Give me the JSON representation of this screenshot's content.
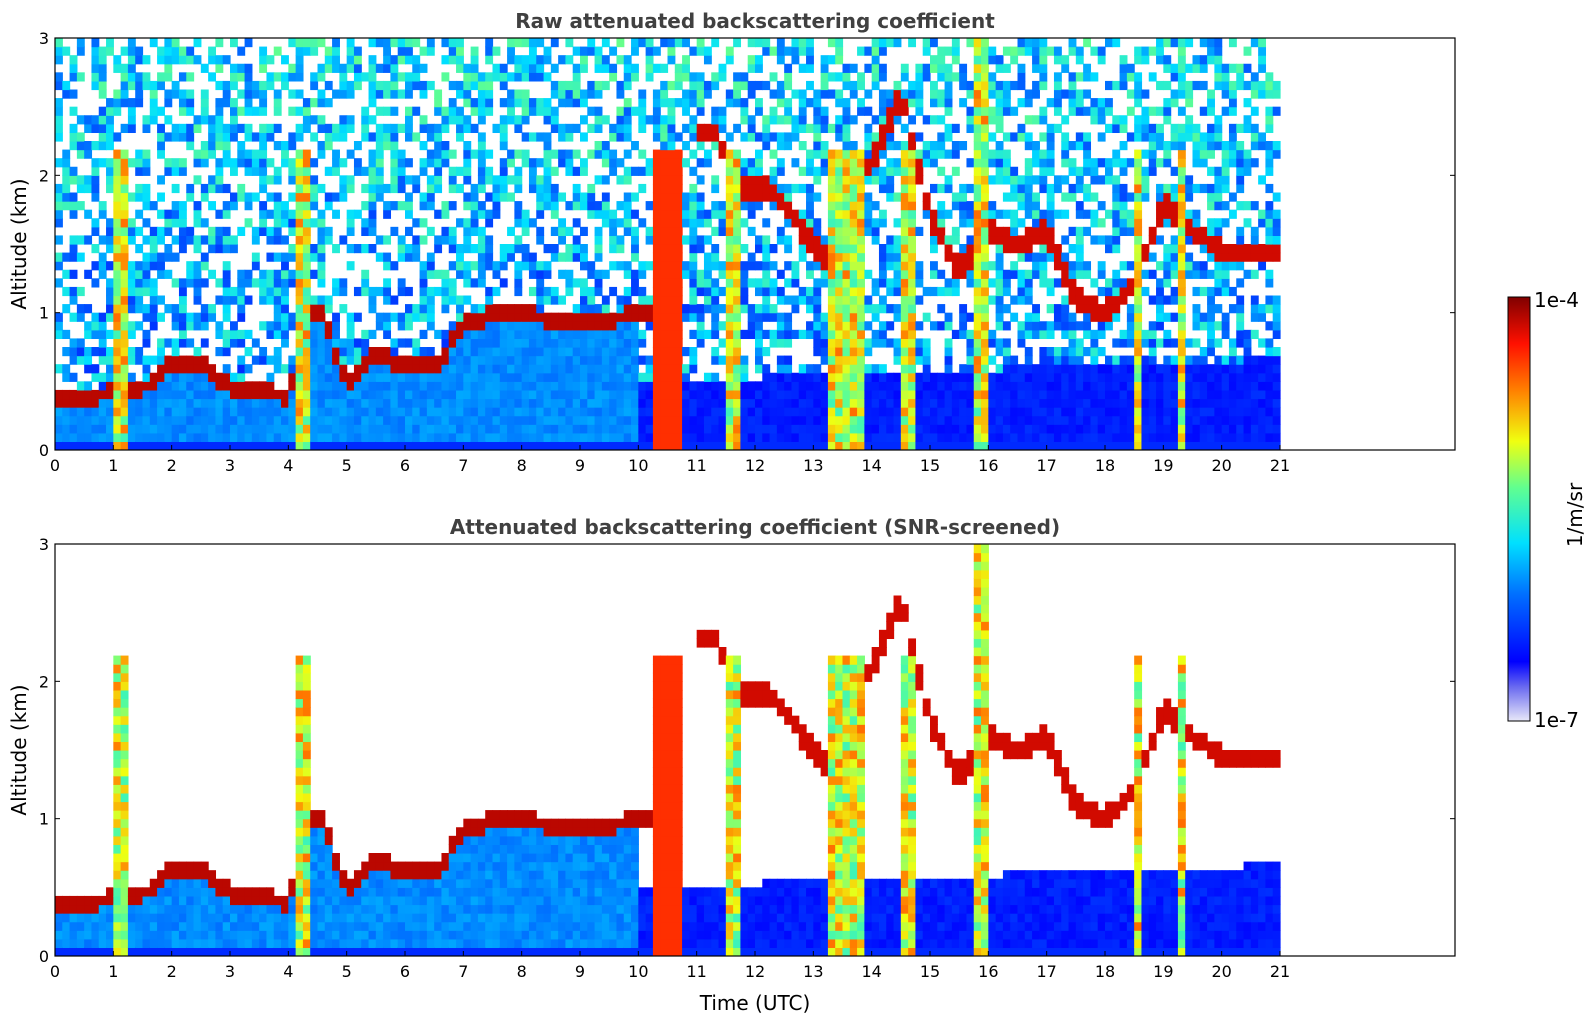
{
  "chart_data": [
    {
      "type": "heatmap",
      "title": "Raw attenuated backscattering coefficient",
      "xlabel": "",
      "ylabel": "Altitude (km)",
      "xlim": [
        0,
        24
      ],
      "ylim": [
        0,
        3
      ],
      "xticks": [
        0,
        1,
        2,
        3,
        4,
        5,
        6,
        7,
        8,
        9,
        10,
        11,
        12,
        13,
        14,
        15,
        16,
        17,
        18,
        19,
        20,
        21
      ],
      "yticks": [
        0,
        1,
        2,
        3
      ],
      "data_x_range": [
        0,
        21
      ],
      "screened": false,
      "features": {
        "boundary_layer": [
          [
            0,
            0.38
          ],
          [
            0.5,
            0.38
          ],
          [
            1,
            0.42
          ],
          [
            1.5,
            0.45
          ],
          [
            2,
            0.62
          ],
          [
            2.5,
            0.65
          ],
          [
            3,
            0.45
          ],
          [
            3.5,
            0.42
          ],
          [
            4,
            0.4
          ],
          [
            4.5,
            1.1
          ],
          [
            5,
            0.48
          ],
          [
            5.5,
            0.7
          ],
          [
            6,
            0.6
          ],
          [
            6.5,
            0.6
          ],
          [
            7,
            0.9
          ],
          [
            7.5,
            1.0
          ],
          [
            8,
            1.0
          ],
          [
            8.5,
            0.95
          ],
          [
            9,
            0.95
          ],
          [
            9.5,
            0.95
          ],
          [
            10,
            1.0
          ]
        ],
        "upper_clouds": [
          [
            11.3,
            2.3
          ],
          [
            11.8,
            1.9
          ],
          [
            12.3,
            1.9
          ],
          [
            12.8,
            1.6
          ],
          [
            13.2,
            1.4
          ],
          [
            13.6,
            1.8
          ],
          [
            14,
            2.1
          ],
          [
            14.5,
            2.6
          ],
          [
            15,
            1.7
          ],
          [
            15.5,
            1.3
          ],
          [
            16,
            1.6
          ],
          [
            16.5,
            1.5
          ],
          [
            17,
            1.6
          ],
          [
            17.5,
            1.1
          ],
          [
            18,
            1.0
          ],
          [
            18.5,
            1.2
          ],
          [
            19,
            1.8
          ],
          [
            19.5,
            1.6
          ],
          [
            20,
            1.45
          ]
        ],
        "precip_columns": [
          [
            1.0,
            1.3
          ],
          [
            4.15,
            4.35
          ],
          [
            10.3,
            10.8
          ],
          [
            11.5,
            11.7
          ],
          [
            13.2,
            13.9
          ],
          [
            14.5,
            14.7
          ],
          [
            15.7,
            16.0
          ],
          [
            18.55,
            18.65
          ],
          [
            19.2,
            19.4
          ]
        ]
      }
    },
    {
      "type": "heatmap",
      "title": "Attenuated backscattering coefficient (SNR-screened)",
      "xlabel": "Time (UTC)",
      "ylabel": "Altitude (km)",
      "xlim": [
        0,
        24
      ],
      "ylim": [
        0,
        3
      ],
      "xticks": [
        0,
        1,
        2,
        3,
        4,
        5,
        6,
        7,
        8,
        9,
        10,
        11,
        12,
        13,
        14,
        15,
        16,
        17,
        18,
        19,
        20,
        21
      ],
      "yticks": [
        0,
        1,
        2,
        3
      ],
      "data_x_range": [
        0,
        21
      ],
      "screened": true
    }
  ],
  "colorbar": {
    "label": "1/m/sr",
    "max_label": "1e-4",
    "min_label": "1e-7",
    "scale": "log",
    "colormap": "jet"
  }
}
